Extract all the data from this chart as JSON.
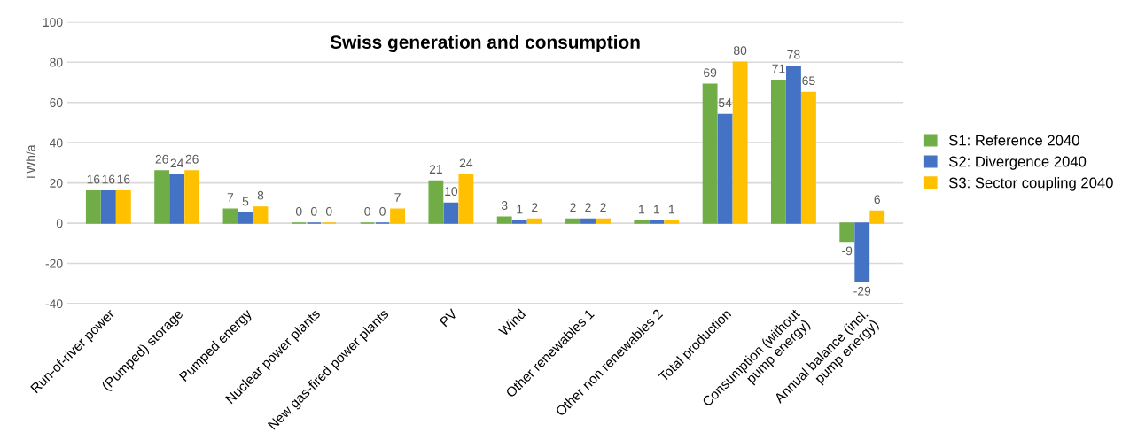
{
  "chart_data": {
    "type": "bar",
    "title": "Swiss generation and consumption",
    "ylabel": "TWh/a",
    "categories": [
      "Run-of-river power",
      "(Pumped) storage",
      "Pumped energy",
      "Nuclear power plants",
      "New gas-fired power plants",
      "PV",
      "Wind",
      "Other renewables 1",
      "Other non renewables 2",
      "Total production",
      "Consumption (without\npump energy)",
      "Annual balance (incl.\npump energy)"
    ],
    "series": [
      {
        "name": "S1: Reference 2040",
        "color": "#70ad47",
        "values": [
          16,
          26,
          7,
          0,
          0,
          21,
          3,
          2,
          1,
          69,
          71,
          -9
        ]
      },
      {
        "name": "S2: Divergence 2040",
        "color": "#4472c4",
        "values": [
          16,
          24,
          5,
          0,
          0,
          10,
          1,
          2,
          1,
          54,
          78,
          -29
        ]
      },
      {
        "name": "S3: Sector coupling 2040",
        "color": "#ffc000",
        "values": [
          16,
          26,
          8,
          0,
          7,
          24,
          2,
          2,
          1,
          80,
          65,
          6
        ]
      }
    ],
    "ylim": [
      -40,
      100
    ],
    "yticks": [
      -40,
      -20,
      0,
      20,
      40,
      60,
      80,
      100
    ],
    "grid": "y",
    "legend": "right",
    "data_labels": true
  }
}
